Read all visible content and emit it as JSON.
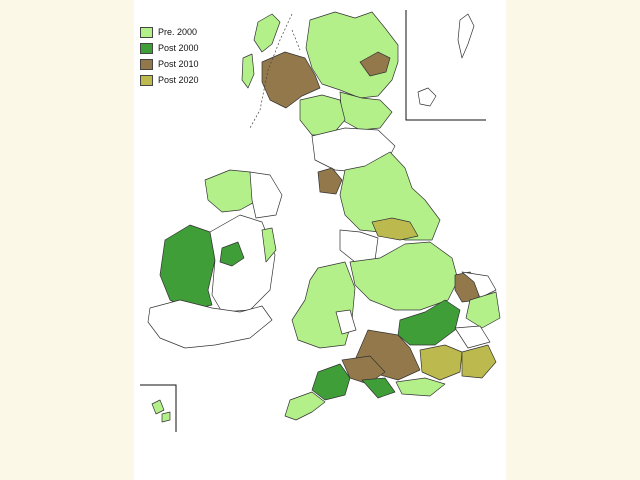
{
  "legend": {
    "items": [
      {
        "label": "Pre.  2000",
        "color": "#b3f08a"
      },
      {
        "label": "Post 2000",
        "color": "#3f9e38"
      },
      {
        "label": "Post 2010",
        "color": "#92784a"
      },
      {
        "label": "Post 2020",
        "color": "#bcba4e"
      }
    ]
  },
  "colors": {
    "unfilled": "#ffffff",
    "outline": "#333333",
    "background": "#fbf8e8"
  }
}
